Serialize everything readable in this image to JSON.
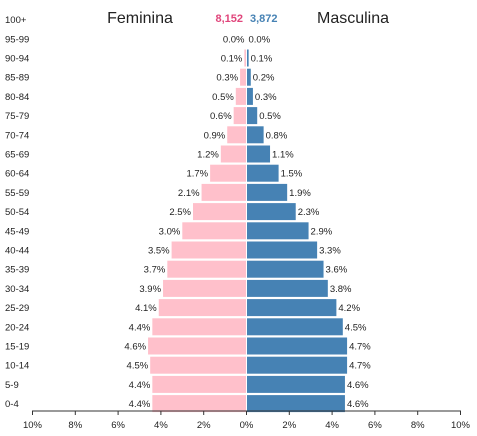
{
  "chart_data": {
    "type": "bar",
    "orientation": "horizontal",
    "layout": "population-pyramid",
    "title_left": "Feminina",
    "title_right": "Masculina",
    "totals": {
      "female": "8,152",
      "male": "3,872"
    },
    "categories": [
      "0-4",
      "5-9",
      "10-14",
      "15-19",
      "20-24",
      "25-29",
      "30-34",
      "35-39",
      "40-44",
      "45-49",
      "50-54",
      "55-59",
      "60-64",
      "65-69",
      "70-74",
      "75-79",
      "80-84",
      "85-89",
      "90-94",
      "95-99",
      "100+"
    ],
    "series": [
      {
        "name": "Feminina",
        "color": "#ffc0cb",
        "values": [
          4.4,
          4.4,
          4.5,
          4.6,
          4.4,
          4.1,
          3.9,
          3.7,
          3.5,
          3.0,
          2.5,
          2.1,
          1.7,
          1.2,
          0.9,
          0.6,
          0.5,
          0.3,
          0.1,
          0.0,
          null
        ],
        "labels": [
          "4.4%",
          "4.4%",
          "4.5%",
          "4.6%",
          "4.4%",
          "4.1%",
          "3.9%",
          "3.7%",
          "3.5%",
          "3.0%",
          "2.5%",
          "2.1%",
          "1.7%",
          "1.2%",
          "0.9%",
          "0.6%",
          "0.5%",
          "0.3%",
          "0.1%",
          "0.0%",
          ""
        ]
      },
      {
        "name": "Masculina",
        "color": "#4682b4",
        "values": [
          4.6,
          4.6,
          4.7,
          4.7,
          4.5,
          4.2,
          3.8,
          3.6,
          3.3,
          2.9,
          2.3,
          1.9,
          1.5,
          1.1,
          0.8,
          0.5,
          0.3,
          0.2,
          0.1,
          0.0,
          null
        ],
        "labels": [
          "4.6%",
          "4.6%",
          "4.7%",
          "4.7%",
          "4.5%",
          "4.2%",
          "3.8%",
          "3.6%",
          "3.3%",
          "2.9%",
          "2.3%",
          "1.9%",
          "1.5%",
          "1.1%",
          "0.8%",
          "0.5%",
          "0.3%",
          "0.2%",
          "0.1%",
          "0.0%",
          ""
        ]
      }
    ],
    "x_tick_labels": [
      "10%",
      "8%",
      "6%",
      "4%",
      "2%",
      "0%",
      "2%",
      "4%",
      "6%",
      "8%",
      "10%"
    ],
    "xlim": [
      -10,
      10
    ],
    "colors": {
      "female_total": "#e0457b",
      "male_total": "#4682b4"
    }
  }
}
